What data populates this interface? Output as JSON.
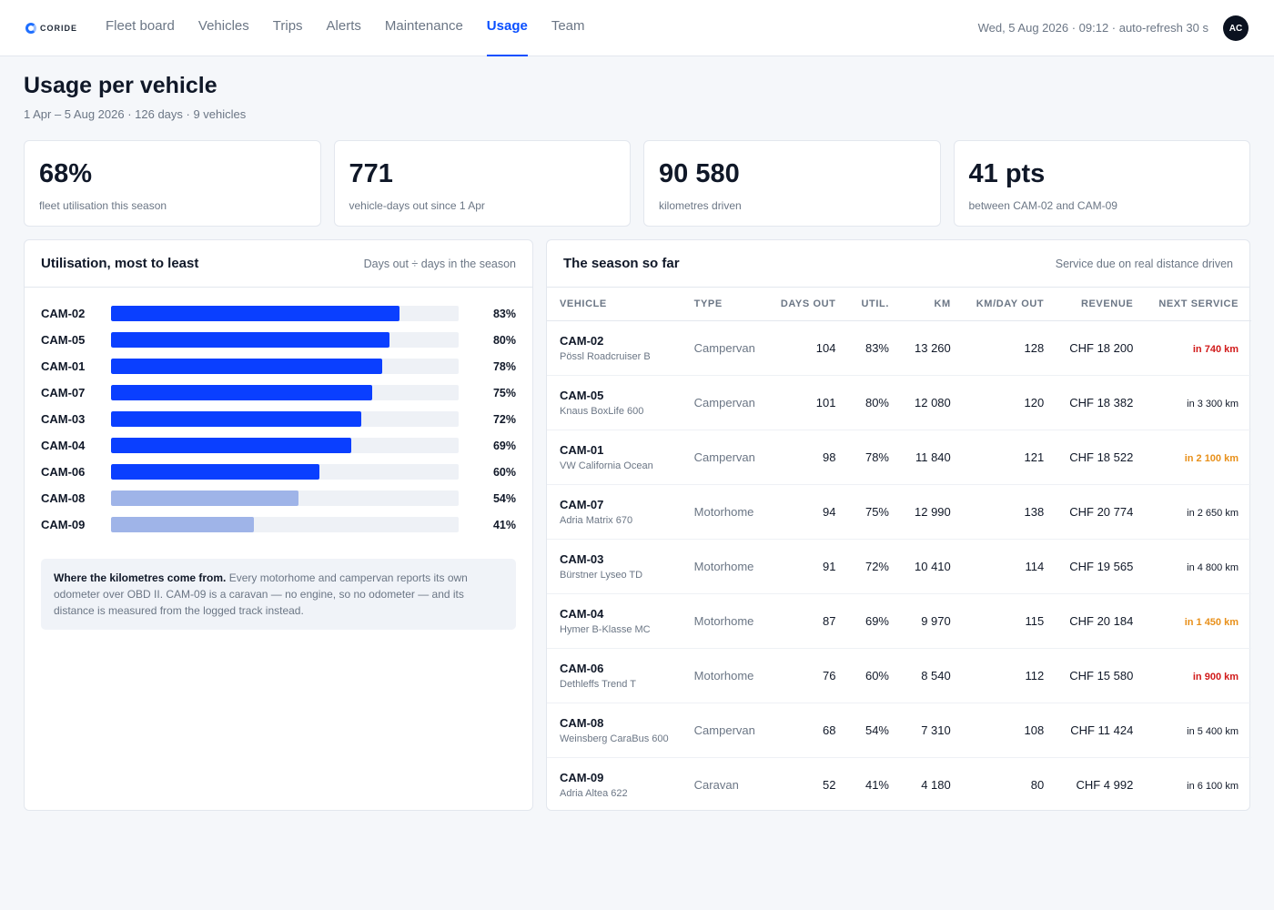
{
  "app": {
    "logo_text": "CORIDE"
  },
  "nav": {
    "items": [
      "Fleet board",
      "Vehicles",
      "Trips",
      "Alerts",
      "Maintenance",
      "Usage",
      "Team"
    ],
    "active": "Usage"
  },
  "header": {
    "clock": "Wed, 5 Aug 2026 · 09:12 · auto-refresh 30 s",
    "avatar_initials": "AC",
    "title": "Usage per vehicle",
    "subtitle": "1 Apr – 5 Aug 2026 · 126 days · 9 vehicles"
  },
  "kpis": [
    {
      "value": "68%",
      "label": "fleet utilisation this season"
    },
    {
      "value": "771",
      "label": "vehicle-days out since 1 Apr"
    },
    {
      "value": "90 580",
      "label": "kilometres driven"
    },
    {
      "value": "41 pts",
      "label": "between CAM-02 and CAM-09"
    }
  ],
  "utilisation": {
    "title": "Utilisation, most to least",
    "note": "Days out ÷ days in the season",
    "bars": [
      {
        "name": "CAM-02",
        "value": 83,
        "label": "83%",
        "color": "#0a3fff"
      },
      {
        "name": "CAM-05",
        "value": 80,
        "label": "80%",
        "color": "#0a3fff"
      },
      {
        "name": "CAM-01",
        "value": 78,
        "label": "78%",
        "color": "#0a3fff"
      },
      {
        "name": "CAM-07",
        "value": 75,
        "label": "75%",
        "color": "#0a3fff"
      },
      {
        "name": "CAM-03",
        "value": 72,
        "label": "72%",
        "color": "#0a3fff"
      },
      {
        "name": "CAM-04",
        "value": 69,
        "label": "69%",
        "color": "#0a3fff"
      },
      {
        "name": "CAM-06",
        "value": 60,
        "label": "60%",
        "color": "#0a3fff"
      },
      {
        "name": "CAM-08",
        "value": 54,
        "label": "54%",
        "color": "#9fb4e8"
      },
      {
        "name": "CAM-09",
        "value": 41,
        "label": "41%",
        "color": "#9fb4e8"
      }
    ],
    "info_bold": "Where the kilometres come from.",
    "info_text": "Every motorhome and campervan reports its own odometer over OBD II. CAM-09 is a caravan — no engine, so no odometer — and its distance is measured from the logged track instead."
  },
  "season": {
    "title": "The season so far",
    "note": "Service due on real distance driven",
    "columns": [
      "Vehicle",
      "Type",
      "Days out",
      "Util.",
      "Km",
      "Km/day out",
      "Revenue",
      "Next service"
    ],
    "rows": [
      {
        "id": "CAM-02",
        "model": "Pössl Roadcruiser B",
        "type": "Campervan",
        "days": "104",
        "util": "83%",
        "km": "13 260",
        "kmday": "128",
        "revenue": "CHF 18 200",
        "service": "in 740 km",
        "status": "red"
      },
      {
        "id": "CAM-05",
        "model": "Knaus BoxLife 600",
        "type": "Campervan",
        "days": "101",
        "util": "80%",
        "km": "12 080",
        "kmday": "120",
        "revenue": "CHF 18 382",
        "service": "in 3 300 km",
        "status": "normal"
      },
      {
        "id": "CAM-01",
        "model": "VW California Ocean",
        "type": "Campervan",
        "days": "98",
        "util": "78%",
        "km": "11 840",
        "kmday": "121",
        "revenue": "CHF 18 522",
        "service": "in 2 100 km",
        "status": "amber"
      },
      {
        "id": "CAM-07",
        "model": "Adria Matrix 670",
        "type": "Motorhome",
        "days": "94",
        "util": "75%",
        "km": "12 990",
        "kmday": "138",
        "revenue": "CHF 20 774",
        "service": "in 2 650 km",
        "status": "normal"
      },
      {
        "id": "CAM-03",
        "model": "Bürstner Lyseo TD",
        "type": "Motorhome",
        "days": "91",
        "util": "72%",
        "km": "10 410",
        "kmday": "114",
        "revenue": "CHF 19 565",
        "service": "in 4 800 km",
        "status": "normal"
      },
      {
        "id": "CAM-04",
        "model": "Hymer B-Klasse MC",
        "type": "Motorhome",
        "days": "87",
        "util": "69%",
        "km": "9 970",
        "kmday": "115",
        "revenue": "CHF 20 184",
        "service": "in 1 450 km",
        "status": "amber"
      },
      {
        "id": "CAM-06",
        "model": "Dethleffs Trend T",
        "type": "Motorhome",
        "days": "76",
        "util": "60%",
        "km": "8 540",
        "kmday": "112",
        "revenue": "CHF 15 580",
        "service": "in 900 km",
        "status": "red"
      },
      {
        "id": "CAM-08",
        "model": "Weinsberg CaraBus 600",
        "type": "Campervan",
        "days": "68",
        "util": "54%",
        "km": "7 310",
        "kmday": "108",
        "revenue": "CHF 11 424",
        "service": "in 5 400 km",
        "status": "normal"
      },
      {
        "id": "CAM-09",
        "model": "Adria Altea 622",
        "type": "Caravan",
        "days": "52",
        "util": "41%",
        "km": "4 180",
        "kmday": "80",
        "revenue": "CHF 4 992",
        "service": "in 6 100 km",
        "status": "normal"
      }
    ]
  },
  "colors": {
    "accent": "#0a4fff",
    "bar_primary": "#0a3fff",
    "bar_muted": "#9fb4e8",
    "service_red": "#d11a1a",
    "service_amber": "#e8901a"
  }
}
